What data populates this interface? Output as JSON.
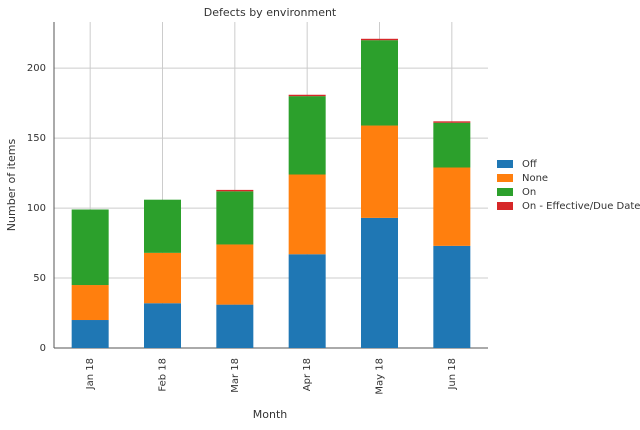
{
  "chart_data": {
    "type": "stacked_bar",
    "title": "Defects by environment",
    "x_label": "Month",
    "y_label": "Number of items",
    "categories": [
      "Jan 18",
      "Feb 18",
      "Mar 18",
      "Apr 18",
      "May 18",
      "Jun 18"
    ],
    "series": [
      {
        "name": "Off",
        "color": "#1f77b4",
        "values": [
          20,
          32,
          31,
          67,
          93,
          73
        ]
      },
      {
        "name": "None",
        "color": "#ff7f0e",
        "values": [
          25,
          36,
          43,
          57,
          66,
          56
        ]
      },
      {
        "name": "On",
        "color": "#2ca02c",
        "values": [
          54,
          38,
          38,
          56,
          61,
          32
        ]
      },
      {
        "name": "On - Effective/Due Date",
        "color": "#d62728",
        "values": [
          0,
          0,
          1,
          1,
          1,
          1
        ]
      }
    ],
    "ylim": [
      0,
      233
    ],
    "yticks": [
      0,
      50,
      100,
      150,
      200
    ],
    "grid": true,
    "legend": "right"
  }
}
